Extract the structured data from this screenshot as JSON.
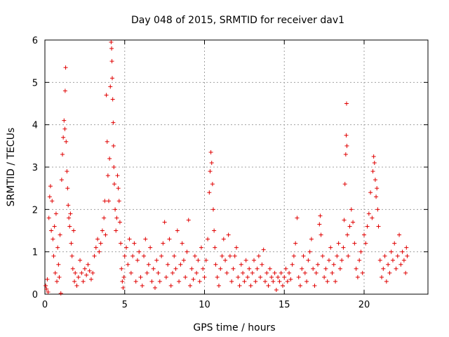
{
  "chart_data": {
    "type": "scatter",
    "title": "Day 048 of 2015, SRMTID for receiver dav1",
    "xlabel": "GPS time / hours",
    "ylabel": "SRMTID / TECUs",
    "xlim": [
      0,
      24
    ],
    "ylim": [
      0,
      6
    ],
    "xticks": [
      0,
      5,
      10,
      15,
      20
    ],
    "yticks": [
      0,
      1,
      2,
      3,
      4,
      5,
      6
    ],
    "xtick_labels": [
      "0",
      "5",
      "10",
      "15",
      "20"
    ],
    "ytick_labels": [
      "0",
      "1",
      "2",
      "3",
      "4",
      "5",
      "6"
    ],
    "grid": true,
    "marker": "+",
    "marker_color": "#e00000",
    "series": [
      {
        "name": "SRMTID",
        "points": [
          [
            0.05,
            0.2
          ],
          [
            0.1,
            0.12
          ],
          [
            0.15,
            0.35
          ],
          [
            0.2,
            0.05
          ],
          [
            0.25,
            1.8
          ],
          [
            0.3,
            2.3
          ],
          [
            0.35,
            2.55
          ],
          [
            0.4,
            1.5
          ],
          [
            0.45,
            2.2
          ],
          [
            0.5,
            1.3
          ],
          [
            0.55,
            0.9
          ],
          [
            0.6,
            1.6
          ],
          [
            0.65,
            0.5
          ],
          [
            0.7,
            1.9
          ],
          [
            0.75,
            0.3
          ],
          [
            0.8,
            1.1
          ],
          [
            0.85,
            0.7
          ],
          [
            0.9,
            0.4
          ],
          [
            0.95,
            1.4
          ],
          [
            1.0,
            0.02
          ],
          [
            1.05,
            2.7
          ],
          [
            1.1,
            3.3
          ],
          [
            1.15,
            3.7
          ],
          [
            1.2,
            4.1
          ],
          [
            1.25,
            3.9
          ],
          [
            1.27,
            4.8
          ],
          [
            1.3,
            5.35
          ],
          [
            1.33,
            3.6
          ],
          [
            1.38,
            2.9
          ],
          [
            1.42,
            2.5
          ],
          [
            1.46,
            2.1
          ],
          [
            1.5,
            1.8
          ],
          [
            1.55,
            1.6
          ],
          [
            1.6,
            1.9
          ],
          [
            1.65,
            1.2
          ],
          [
            1.7,
            0.9
          ],
          [
            1.75,
            0.6
          ],
          [
            1.8,
            1.5
          ],
          [
            1.85,
            0.3
          ],
          [
            1.9,
            0.5
          ],
          [
            2.0,
            0.2
          ],
          [
            2.1,
            0.4
          ],
          [
            2.2,
            0.8
          ],
          [
            2.3,
            0.5
          ],
          [
            2.4,
            0.3
          ],
          [
            2.5,
            0.6
          ],
          [
            2.6,
            0.45
          ],
          [
            2.7,
            0.7
          ],
          [
            2.8,
            0.55
          ],
          [
            2.9,
            0.35
          ],
          [
            3.0,
            0.5
          ],
          [
            3.1,
            0.9
          ],
          [
            3.2,
            1.1
          ],
          [
            3.3,
            1.3
          ],
          [
            3.4,
            1.0
          ],
          [
            3.5,
            1.2
          ],
          [
            3.6,
            1.5
          ],
          [
            3.7,
            1.8
          ],
          [
            3.75,
            2.2
          ],
          [
            3.8,
            1.4
          ],
          [
            3.85,
            4.7
          ],
          [
            3.9,
            3.6
          ],
          [
            3.95,
            2.8
          ],
          [
            4.0,
            2.2
          ],
          [
            4.05,
            3.2
          ],
          [
            4.1,
            4.9
          ],
          [
            4.15,
            5.95
          ],
          [
            4.18,
            5.8
          ],
          [
            4.2,
            5.5
          ],
          [
            4.22,
            5.1
          ],
          [
            4.25,
            4.6
          ],
          [
            4.28,
            4.05
          ],
          [
            4.3,
            3.5
          ],
          [
            4.32,
            3.0
          ],
          [
            4.35,
            2.6
          ],
          [
            4.4,
            2.0
          ],
          [
            4.45,
            1.5
          ],
          [
            4.5,
            1.8
          ],
          [
            4.55,
            2.8
          ],
          [
            4.6,
            2.5
          ],
          [
            4.65,
            2.2
          ],
          [
            4.7,
            1.7
          ],
          [
            4.75,
            1.2
          ],
          [
            4.8,
            0.6
          ],
          [
            4.85,
            0.3
          ],
          [
            4.9,
            0.15
          ],
          [
            4.95,
            0.4
          ],
          [
            5.0,
            0.9
          ],
          [
            5.1,
            1.1
          ],
          [
            5.2,
            0.7
          ],
          [
            5.3,
            1.3
          ],
          [
            5.4,
            0.5
          ],
          [
            5.5,
            0.9
          ],
          [
            5.6,
            1.2
          ],
          [
            5.7,
            0.3
          ],
          [
            5.8,
            0.8
          ],
          [
            5.9,
            1.0
          ],
          [
            6.0,
            0.4
          ],
          [
            6.1,
            0.2
          ],
          [
            6.2,
            0.9
          ],
          [
            6.3,
            1.3
          ],
          [
            6.4,
            0.5
          ],
          [
            6.5,
            0.7
          ],
          [
            6.6,
            1.1
          ],
          [
            6.7,
            0.3
          ],
          [
            6.8,
            0.6
          ],
          [
            6.9,
            0.15
          ],
          [
            7.0,
            0.8
          ],
          [
            7.1,
            0.5
          ],
          [
            7.2,
            0.3
          ],
          [
            7.3,
            0.9
          ],
          [
            7.4,
            1.2
          ],
          [
            7.5,
            1.7
          ],
          [
            7.6,
            0.4
          ],
          [
            7.7,
            0.7
          ],
          [
            7.8,
            1.3
          ],
          [
            7.9,
            0.2
          ],
          [
            8.0,
            0.5
          ],
          [
            8.1,
            0.9
          ],
          [
            8.2,
            0.6
          ],
          [
            8.3,
            1.5
          ],
          [
            8.4,
            0.3
          ],
          [
            8.5,
            0.7
          ],
          [
            8.6,
            1.2
          ],
          [
            8.7,
            0.8
          ],
          [
            8.8,
            0.4
          ],
          [
            8.9,
            1.0
          ],
          [
            9.0,
            1.75
          ],
          [
            9.1,
            0.2
          ],
          [
            9.2,
            0.6
          ],
          [
            9.3,
            0.35
          ],
          [
            9.4,
            0.9
          ],
          [
            9.5,
            0.5
          ],
          [
            9.6,
            0.8
          ],
          [
            9.7,
            0.3
          ],
          [
            9.8,
            1.1
          ],
          [
            9.9,
            0.6
          ],
          [
            10.0,
            0.4
          ],
          [
            10.1,
            0.8
          ],
          [
            10.2,
            1.3
          ],
          [
            10.3,
            2.4
          ],
          [
            10.35,
            2.9
          ],
          [
            10.4,
            3.35
          ],
          [
            10.45,
            3.1
          ],
          [
            10.5,
            2.6
          ],
          [
            10.55,
            2.0
          ],
          [
            10.6,
            1.5
          ],
          [
            10.65,
            1.1
          ],
          [
            10.7,
            0.7
          ],
          [
            10.8,
            0.4
          ],
          [
            10.9,
            0.2
          ],
          [
            11.0,
            0.6
          ],
          [
            11.1,
            0.9
          ],
          [
            11.2,
            1.3
          ],
          [
            11.3,
            0.8
          ],
          [
            11.4,
            0.5
          ],
          [
            11.5,
            1.4
          ],
          [
            11.6,
            0.9
          ],
          [
            11.7,
            0.3
          ],
          [
            11.8,
            0.6
          ],
          [
            11.9,
            0.9
          ],
          [
            12.0,
            1.1
          ],
          [
            12.1,
            0.4
          ],
          [
            12.2,
            0.2
          ],
          [
            12.3,
            0.7
          ],
          [
            12.4,
            0.5
          ],
          [
            12.5,
            0.3
          ],
          [
            12.6,
            0.8
          ],
          [
            12.7,
            0.4
          ],
          [
            12.8,
            0.6
          ],
          [
            12.9,
            0.2
          ],
          [
            13.0,
            0.5
          ],
          [
            13.1,
            0.8
          ],
          [
            13.2,
            0.3
          ],
          [
            13.3,
            0.6
          ],
          [
            13.4,
            0.9
          ],
          [
            13.5,
            0.4
          ],
          [
            13.6,
            0.7
          ],
          [
            13.7,
            1.05
          ],
          [
            13.8,
            0.3
          ],
          [
            13.9,
            0.5
          ],
          [
            14.0,
            0.2
          ],
          [
            14.1,
            0.6
          ],
          [
            14.2,
            0.4
          ],
          [
            14.3,
            0.3
          ],
          [
            14.4,
            0.5
          ],
          [
            14.5,
            0.1
          ],
          [
            14.6,
            0.4
          ],
          [
            14.7,
            0.3
          ],
          [
            14.8,
            0.5
          ],
          [
            14.9,
            0.2
          ],
          [
            15.0,
            0.4
          ],
          [
            15.1,
            0.6
          ],
          [
            15.2,
            0.3
          ],
          [
            15.3,
            0.5
          ],
          [
            15.4,
            0.35
          ],
          [
            15.5,
            0.7
          ],
          [
            15.6,
            0.9
          ],
          [
            15.7,
            1.2
          ],
          [
            15.8,
            1.8
          ],
          [
            15.9,
            0.4
          ],
          [
            16.0,
            0.2
          ],
          [
            16.1,
            0.6
          ],
          [
            16.2,
            0.9
          ],
          [
            16.3,
            0.5
          ],
          [
            16.4,
            0.3
          ],
          [
            16.5,
            0.8
          ],
          [
            16.6,
            1.0
          ],
          [
            16.7,
            1.3
          ],
          [
            16.8,
            0.6
          ],
          [
            16.9,
            0.2
          ],
          [
            17.0,
            0.5
          ],
          [
            17.1,
            0.7
          ],
          [
            17.2,
            1.65
          ],
          [
            17.25,
            1.85
          ],
          [
            17.3,
            1.4
          ],
          [
            17.4,
            0.9
          ],
          [
            17.5,
            0.4
          ],
          [
            17.6,
            0.6
          ],
          [
            17.7,
            0.3
          ],
          [
            17.8,
            0.8
          ],
          [
            17.9,
            1.1
          ],
          [
            18.0,
            0.5
          ],
          [
            18.1,
            0.7
          ],
          [
            18.2,
            0.3
          ],
          [
            18.3,
            0.9
          ],
          [
            18.4,
            1.2
          ],
          [
            18.5,
            0.6
          ],
          [
            18.6,
            0.8
          ],
          [
            18.7,
            1.1
          ],
          [
            18.75,
            1.75
          ],
          [
            18.8,
            2.6
          ],
          [
            18.85,
            3.3
          ],
          [
            18.88,
            3.75
          ],
          [
            18.9,
            4.5
          ],
          [
            18.92,
            3.5
          ],
          [
            18.95,
            1.4
          ],
          [
            19.0,
            0.9
          ],
          [
            19.1,
            1.6
          ],
          [
            19.2,
            2.0
          ],
          [
            19.3,
            1.7
          ],
          [
            19.4,
            1.2
          ],
          [
            19.5,
            0.6
          ],
          [
            19.6,
            0.4
          ],
          [
            19.7,
            0.8
          ],
          [
            19.8,
            1.0
          ],
          [
            19.9,
            0.5
          ],
          [
            20.0,
            1.4
          ],
          [
            20.1,
            1.2
          ],
          [
            20.2,
            1.6
          ],
          [
            20.3,
            1.9
          ],
          [
            20.4,
            2.4
          ],
          [
            20.5,
            1.8
          ],
          [
            20.55,
            2.9
          ],
          [
            20.6,
            3.25
          ],
          [
            20.65,
            3.1
          ],
          [
            20.7,
            2.7
          ],
          [
            20.75,
            2.3
          ],
          [
            20.8,
            2.5
          ],
          [
            20.85,
            2.0
          ],
          [
            20.9,
            1.6
          ],
          [
            21.0,
            0.8
          ],
          [
            21.1,
            0.4
          ],
          [
            21.2,
            0.6
          ],
          [
            21.3,
            0.9
          ],
          [
            21.4,
            0.3
          ],
          [
            21.5,
            0.7
          ],
          [
            21.6,
            0.5
          ],
          [
            21.7,
            1.0
          ],
          [
            21.8,
            0.8
          ],
          [
            21.9,
            1.2
          ],
          [
            22.0,
            0.6
          ],
          [
            22.1,
            0.9
          ],
          [
            22.2,
            1.4
          ],
          [
            22.3,
            0.7
          ],
          [
            22.4,
            1.0
          ],
          [
            22.5,
            0.8
          ],
          [
            22.6,
            0.5
          ],
          [
            22.65,
            1.1
          ],
          [
            22.7,
            0.9
          ]
        ]
      }
    ]
  }
}
